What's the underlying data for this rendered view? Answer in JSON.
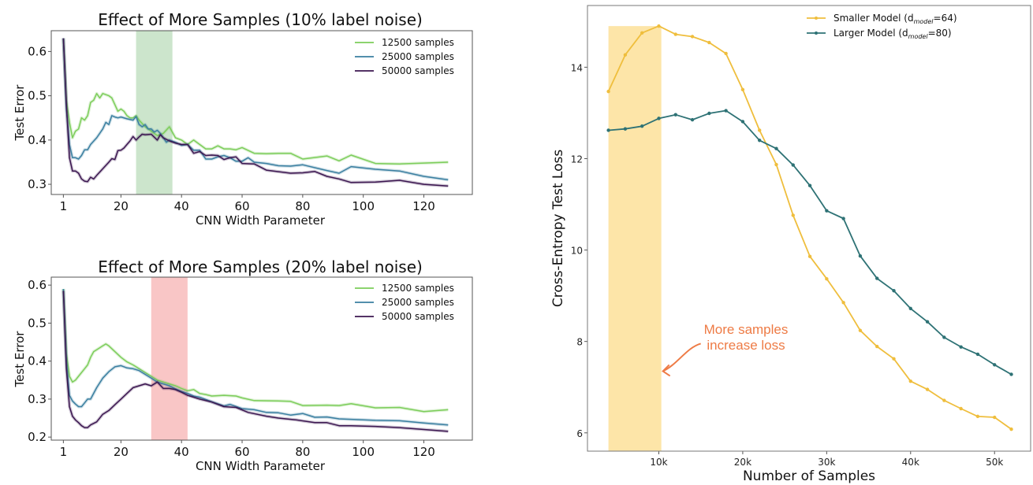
{
  "chart_data": [
    {
      "type": "line",
      "title": "Effect of More Samples (10% label noise)",
      "xlabel": "CNN Width Parameter",
      "ylabel": "Test Error",
      "xlim": [
        -3,
        136
      ],
      "ylim": [
        0.277,
        0.647
      ],
      "xticks": [
        1,
        20,
        40,
        60,
        80,
        100,
        120
      ],
      "yticks": [
        0.3,
        0.4,
        0.5,
        0.6
      ],
      "ytick_labels": [
        "0.3",
        "0.4",
        "0.5",
        "0.6"
      ],
      "grid": false,
      "legend": "top-right",
      "shaded_region": {
        "x": [
          25,
          37
        ],
        "color": "#cce5cc"
      },
      "series": [
        {
          "name": "12500 samples",
          "color": "#7ccd5a",
          "x": [
            1,
            2,
            3,
            4,
            5,
            6,
            7,
            8,
            9,
            10,
            11,
            12,
            13,
            14,
            16,
            17,
            18,
            19,
            20,
            21,
            22,
            23,
            24,
            25,
            26,
            28,
            30,
            32,
            34,
            36,
            38,
            40,
            42,
            44,
            46,
            48,
            50,
            52,
            54,
            56,
            58,
            60,
            64,
            68,
            72,
            76,
            80,
            88,
            92,
            96,
            104,
            112,
            120,
            128
          ],
          "y": [
            0.63,
            0.49,
            0.44,
            0.405,
            0.42,
            0.425,
            0.45,
            0.445,
            0.455,
            0.485,
            0.49,
            0.505,
            0.495,
            0.505,
            0.5,
            0.495,
            0.48,
            0.465,
            0.47,
            0.465,
            0.455,
            0.45,
            0.45,
            0.455,
            0.445,
            0.43,
            0.42,
            0.41,
            0.415,
            0.43,
            0.405,
            0.4,
            0.39,
            0.4,
            0.39,
            0.38,
            0.38,
            0.387,
            0.38,
            0.38,
            0.378,
            0.383,
            0.37,
            0.369,
            0.37,
            0.37,
            0.357,
            0.364,
            0.353,
            0.366,
            0.347,
            0.346,
            0.348,
            0.35
          ]
        },
        {
          "name": "25000 samples",
          "color": "#3a7fa0",
          "x": [
            1,
            2,
            3,
            4,
            5,
            6,
            7,
            8,
            9,
            10,
            12,
            14,
            15,
            16,
            17,
            18,
            19,
            20,
            22,
            24,
            25,
            26,
            27,
            28,
            29,
            30,
            31,
            32,
            33,
            34,
            35,
            36,
            38,
            40,
            42,
            44,
            46,
            48,
            50,
            52,
            54,
            56,
            58,
            60,
            62,
            64,
            68,
            72,
            76,
            80,
            88,
            92,
            96,
            104,
            112,
            120,
            128
          ],
          "y": [
            0.63,
            0.47,
            0.39,
            0.36,
            0.36,
            0.357,
            0.365,
            0.378,
            0.378,
            0.39,
            0.405,
            0.425,
            0.44,
            0.435,
            0.455,
            0.452,
            0.45,
            0.452,
            0.448,
            0.445,
            0.453,
            0.435,
            0.43,
            0.435,
            0.425,
            0.425,
            0.418,
            0.422,
            0.415,
            0.405,
            0.395,
            0.4,
            0.395,
            0.388,
            0.39,
            0.377,
            0.377,
            0.357,
            0.357,
            0.362,
            0.365,
            0.36,
            0.352,
            0.352,
            0.36,
            0.35,
            0.347,
            0.342,
            0.341,
            0.344,
            0.331,
            0.325,
            0.34,
            0.334,
            0.33,
            0.318,
            0.31
          ]
        },
        {
          "name": "50000 samples",
          "color": "#3b1650",
          "x": [
            1,
            2,
            3,
            4,
            5,
            6,
            7,
            8,
            9,
            10,
            11,
            12,
            14,
            16,
            17,
            18,
            19,
            20,
            21,
            22,
            23,
            24,
            25,
            26,
            27,
            28,
            30,
            32,
            33,
            34,
            36,
            38,
            40,
            42,
            44,
            46,
            48,
            50,
            52,
            54,
            56,
            58,
            60,
            64,
            68,
            76,
            80,
            84,
            88,
            92,
            96,
            104,
            112,
            120,
            128
          ],
          "y": [
            0.63,
            0.48,
            0.36,
            0.33,
            0.33,
            0.325,
            0.312,
            0.307,
            0.306,
            0.316,
            0.312,
            0.32,
            0.335,
            0.35,
            0.358,
            0.356,
            0.376,
            0.377,
            0.382,
            0.39,
            0.398,
            0.408,
            0.4,
            0.407,
            0.413,
            0.412,
            0.413,
            0.4,
            0.412,
            0.405,
            0.398,
            0.393,
            0.39,
            0.39,
            0.37,
            0.374,
            0.365,
            0.366,
            0.365,
            0.356,
            0.36,
            0.362,
            0.347,
            0.346,
            0.332,
            0.325,
            0.326,
            0.329,
            0.318,
            0.312,
            0.304,
            0.305,
            0.309,
            0.3,
            0.296
          ]
        }
      ]
    },
    {
      "type": "line",
      "title": "Effect of More Samples (20% label noise)",
      "xlabel": "CNN Width Parameter",
      "ylabel": "Test Error",
      "xlim": [
        -3,
        136
      ],
      "ylim": [
        0.192,
        0.621
      ],
      "xticks": [
        1,
        20,
        40,
        60,
        80,
        100,
        120
      ],
      "yticks": [
        0.2,
        0.3,
        0.4,
        0.5,
        0.6
      ],
      "ytick_labels": [
        "0.2",
        "0.3",
        "0.4",
        "0.5",
        "0.6"
      ],
      "grid": false,
      "legend": "top-right",
      "shaded_region": {
        "x": [
          30,
          42
        ],
        "color": "#f9c6c6"
      },
      "series": [
        {
          "name": "12500 samples",
          "color": "#7ccd5a",
          "x": [
            1,
            2,
            3,
            4,
            5,
            6,
            8,
            9,
            10,
            11,
            12,
            14,
            15,
            16,
            18,
            20,
            22,
            24,
            25,
            26,
            28,
            30,
            32,
            34,
            36,
            38,
            40,
            42,
            44,
            46,
            48,
            50,
            54,
            58,
            60,
            64,
            72,
            76,
            80,
            88,
            92,
            96,
            104,
            112,
            120,
            128
          ],
          "y": [
            0.59,
            0.42,
            0.36,
            0.345,
            0.35,
            0.36,
            0.38,
            0.39,
            0.41,
            0.425,
            0.43,
            0.44,
            0.445,
            0.44,
            0.425,
            0.41,
            0.398,
            0.39,
            0.385,
            0.38,
            0.37,
            0.36,
            0.35,
            0.345,
            0.34,
            0.335,
            0.328,
            0.322,
            0.325,
            0.315,
            0.312,
            0.308,
            0.31,
            0.308,
            0.303,
            0.296,
            0.295,
            0.294,
            0.283,
            0.284,
            0.283,
            0.288,
            0.277,
            0.278,
            0.267,
            0.272
          ]
        },
        {
          "name": "25000 samples",
          "color": "#3a7fa0",
          "x": [
            1,
            2,
            3,
            4,
            5,
            6,
            7,
            8,
            9,
            10,
            12,
            14,
            16,
            18,
            20,
            22,
            24,
            26,
            28,
            30,
            32,
            34,
            36,
            38,
            40,
            42,
            44,
            46,
            50,
            54,
            56,
            60,
            64,
            68,
            72,
            76,
            80,
            84,
            88,
            92,
            104,
            112,
            120,
            128
          ],
          "y": [
            0.59,
            0.4,
            0.31,
            0.295,
            0.287,
            0.28,
            0.28,
            0.29,
            0.3,
            0.3,
            0.33,
            0.355,
            0.372,
            0.385,
            0.388,
            0.382,
            0.38,
            0.375,
            0.365,
            0.355,
            0.345,
            0.34,
            0.335,
            0.327,
            0.32,
            0.315,
            0.308,
            0.305,
            0.293,
            0.282,
            0.286,
            0.275,
            0.272,
            0.265,
            0.264,
            0.258,
            0.262,
            0.252,
            0.253,
            0.248,
            0.244,
            0.243,
            0.237,
            0.232
          ]
        },
        {
          "name": "50000 samples",
          "color": "#3b1650",
          "x": [
            1,
            2,
            3,
            4,
            5,
            6,
            7,
            8,
            9,
            10,
            12,
            14,
            16,
            18,
            20,
            22,
            24,
            26,
            28,
            30,
            32,
            34,
            36,
            38,
            40,
            42,
            44,
            46,
            50,
            54,
            58,
            62,
            68,
            72,
            78,
            84,
            88,
            92,
            96,
            104,
            112,
            120,
            128
          ],
          "y": [
            0.585,
            0.38,
            0.28,
            0.255,
            0.245,
            0.238,
            0.23,
            0.225,
            0.225,
            0.232,
            0.24,
            0.26,
            0.27,
            0.285,
            0.3,
            0.315,
            0.33,
            0.335,
            0.34,
            0.335,
            0.345,
            0.328,
            0.328,
            0.325,
            0.318,
            0.31,
            0.305,
            0.3,
            0.292,
            0.28,
            0.278,
            0.265,
            0.255,
            0.25,
            0.245,
            0.238,
            0.238,
            0.23,
            0.23,
            0.228,
            0.225,
            0.22,
            0.215
          ]
        }
      ]
    },
    {
      "type": "line",
      "title": "",
      "xlabel": "Number of Samples",
      "ylabel": "Cross-Entropy Test Loss",
      "xlim": [
        1500,
        54300
      ],
      "ylim": [
        5.6,
        15.35
      ],
      "xticks": [
        10000,
        20000,
        30000,
        40000,
        50000
      ],
      "xtick_labels": [
        "10k",
        "20k",
        "30k",
        "40k",
        "50k"
      ],
      "yticks": [
        6,
        8,
        10,
        12,
        14
      ],
      "ytick_labels": [
        "6",
        "8",
        "10",
        "12",
        "14"
      ],
      "grid": false,
      "legend": "top-right",
      "shaded_region": {
        "x": [
          4000,
          10300
        ],
        "y": [
          5.6,
          14.9
        ],
        "color": "#fde5a8"
      },
      "annotation": {
        "text_line1": "More samples",
        "text_line2": "increase loss",
        "color": "#ee7b45",
        "arrow_target": [
          10300,
          7.35
        ]
      },
      "x": [
        4000,
        6000,
        8000,
        10000,
        12000,
        14000,
        16000,
        18000,
        20000,
        22000,
        24000,
        26000,
        28000,
        30000,
        32000,
        34000,
        36000,
        38000,
        40000,
        42000,
        44000,
        46000,
        48000,
        50000,
        52000
      ],
      "series": [
        {
          "name": "Smaller Model (d",
          "sub": "model",
          "suffix": "=64)",
          "color": "#efbe3d",
          "values": [
            13.47,
            14.27,
            14.75,
            14.9,
            14.72,
            14.67,
            14.54,
            14.3,
            13.51,
            12.62,
            11.87,
            10.76,
            9.86,
            9.37,
            8.85,
            8.24,
            7.89,
            7.62,
            7.13,
            6.95,
            6.71,
            6.53,
            6.36,
            6.34,
            6.08
          ]
        },
        {
          "name": "Larger  Model (d",
          "sub": "model",
          "suffix": "=80)",
          "color": "#2e7275",
          "values": [
            12.62,
            12.65,
            12.71,
            12.88,
            12.96,
            12.85,
            12.99,
            13.05,
            12.81,
            12.4,
            12.22,
            11.86,
            11.41,
            10.86,
            10.69,
            9.87,
            9.38,
            9.11,
            8.72,
            8.43,
            8.09,
            7.88,
            7.72,
            7.49,
            7.28
          ]
        }
      ]
    }
  ]
}
